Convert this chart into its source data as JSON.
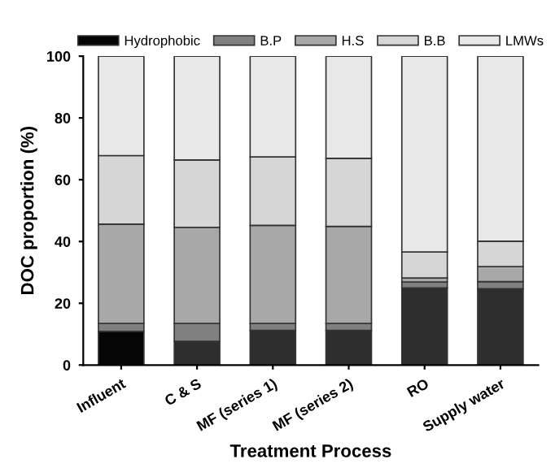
{
  "chart_data": {
    "type": "bar",
    "stacked": true,
    "xlabel": "Treatment Process",
    "ylabel": "DOC proportion (%)",
    "categories": [
      "Influent",
      "C & S",
      "MF (series 1)",
      "MF (series 2)",
      "RO",
      "Supply water"
    ],
    "series": [
      {
        "name": "Hydrophobic",
        "colors": [
          "#050505",
          "#2e2e2e",
          "#2e2e2e",
          "#2e2e2e",
          "#2e2e2e",
          "#2e2e2e"
        ],
        "values": [
          10.9,
          7.7,
          11.2,
          11.2,
          25.0,
          24.7
        ]
      },
      {
        "name": "B.P",
        "color": "#808080",
        "values": [
          2.6,
          5.8,
          2.3,
          2.3,
          1.9,
          2.3
        ]
      },
      {
        "name": "H.S",
        "color": "#a8a8a8",
        "values": [
          32.1,
          31.1,
          31.7,
          31.4,
          1.3,
          4.9
        ]
      },
      {
        "name": "B.B",
        "color": "#d6d6d6",
        "values": [
          22.2,
          21.8,
          22.2,
          22.0,
          8.4,
          8.2
        ]
      },
      {
        "name": "LMWs",
        "color": "#e8e8e8",
        "values": [
          32.2,
          33.6,
          32.6,
          33.1,
          63.4,
          59.9
        ]
      }
    ],
    "ylim": [
      0,
      100
    ],
    "yticks": [
      0,
      20,
      40,
      60,
      80,
      100
    ],
    "grid": false,
    "legend": "top"
  }
}
